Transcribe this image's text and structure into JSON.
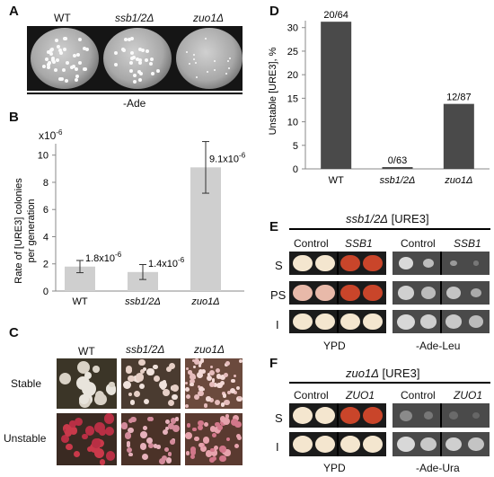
{
  "panels": {
    "a": {
      "letter": "A",
      "plates": [
        "WT",
        "ssb1/2Δ",
        "zuo1Δ"
      ],
      "medium": "-Ade"
    },
    "b": {
      "letter": "B",
      "scale": "x10",
      "scale_exp": "-6"
    },
    "c": {
      "letter": "C",
      "cols": [
        "WT",
        "ssb1/2Δ",
        "zuo1Δ"
      ],
      "rows": [
        "Stable",
        "Unstable"
      ]
    },
    "d": {
      "letter": "D"
    },
    "e": {
      "letter": "E",
      "title_strain": "ssb1/2Δ",
      "title_prion": "[URE3]",
      "cols": [
        "Control",
        "SSB1",
        "Control",
        "SSB1"
      ],
      "rows": [
        "S",
        "PS",
        "I"
      ],
      "media": [
        "YPD",
        "-Ade-Leu"
      ]
    },
    "f": {
      "letter": "F",
      "title_strain": "zuo1Δ",
      "title_prion": "[URE3]",
      "cols": [
        "Control",
        "ZUO1",
        "Control",
        "ZUO1"
      ],
      "rows": [
        "S",
        "I"
      ],
      "media": [
        "YPD",
        "-Ade-Ura"
      ]
    }
  },
  "chart_data": [
    {
      "panel": "B",
      "type": "bar",
      "categories": [
        "WT",
        "ssb1/2Δ",
        "zuo1Δ"
      ],
      "values": [
        1.8,
        1.4,
        9.1
      ],
      "errors": [
        0.45,
        0.55,
        1.9
      ],
      "value_labels": [
        "1.8x10",
        "1.4x10",
        "9.1x10"
      ],
      "value_label_exp": "-6",
      "ylabel_line1": "Rate of [URE3] colonies",
      "ylabel_line2": "per generation",
      "yticks": [
        0,
        2,
        4,
        6,
        8,
        10
      ],
      "ylim": [
        0,
        11.5
      ],
      "bar_color": "#cfcfcf"
    },
    {
      "panel": "D",
      "type": "bar",
      "categories": [
        "WT",
        "ssb1/2Δ",
        "zuo1Δ"
      ],
      "values": [
        31.25,
        0,
        13.8
      ],
      "value_labels": [
        "20/64",
        "0/63",
        "12/87"
      ],
      "ylabel": "Unstable [URE3], %",
      "yticks": [
        0,
        5,
        10,
        15,
        20,
        25,
        30
      ],
      "ylim": [
        0,
        33
      ],
      "bar_color": "#4a4a4a"
    }
  ]
}
